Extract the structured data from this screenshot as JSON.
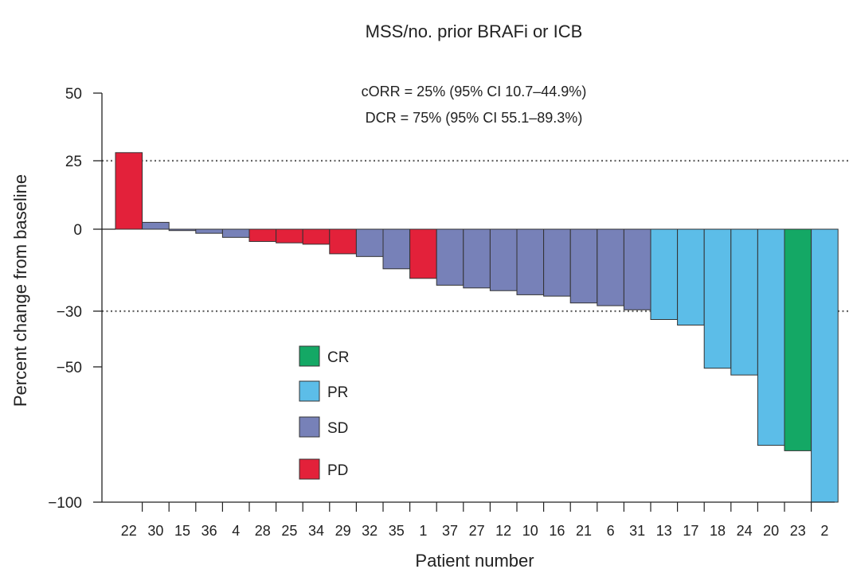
{
  "chart_data": {
    "type": "bar",
    "title": "MSS/no. prior BRAFi or ICB",
    "xlabel": "Patient number",
    "ylabel": "Percent change from baseline",
    "ylim": [
      -100,
      50
    ],
    "yticks": [
      50,
      25,
      0,
      -30,
      -50,
      -100
    ],
    "ytick_labels": [
      "50",
      "25",
      "0",
      "−30",
      "−50",
      "−100"
    ],
    "reference_lines": [
      25,
      -30
    ],
    "annotations": [
      "cORR = 25% (95% CI 10.7–44.9%)",
      "DCR = 75% (95% CI 55.1–89.3%)"
    ],
    "categories": [
      "22",
      "30",
      "15",
      "36",
      "4",
      "28",
      "25",
      "34",
      "29",
      "32",
      "35",
      "1",
      "37",
      "27",
      "12",
      "10",
      "16",
      "21",
      "6",
      "31",
      "13",
      "17",
      "18",
      "24",
      "20",
      "23",
      "2"
    ],
    "values": [
      28,
      2.5,
      -0.5,
      -1.5,
      -3,
      -4.5,
      -5,
      -5.5,
      -9,
      -10,
      -14.5,
      -18,
      -20.5,
      -21.5,
      -22.5,
      -24,
      -24.5,
      -27,
      -28,
      -29.5,
      -33,
      -35,
      -50.5,
      -53,
      -79,
      -81,
      -100
    ],
    "responses": [
      "PD",
      "SD",
      "SD",
      "SD",
      "SD",
      "PD",
      "PD",
      "PD",
      "PD",
      "SD",
      "SD",
      "PD",
      "SD",
      "SD",
      "SD",
      "SD",
      "SD",
      "SD",
      "SD",
      "SD",
      "PR",
      "PR",
      "PR",
      "PR",
      "PR",
      "CR",
      "PR"
    ],
    "legend": [
      {
        "key": "CR",
        "label": "CR",
        "color": "#14a865"
      },
      {
        "key": "PR",
        "label": "PR",
        "color": "#5cbde8"
      },
      {
        "key": "SD",
        "label": "SD",
        "color": "#7781b8"
      },
      {
        "key": "PD",
        "label": "PD",
        "color": "#e3213a"
      }
    ]
  }
}
